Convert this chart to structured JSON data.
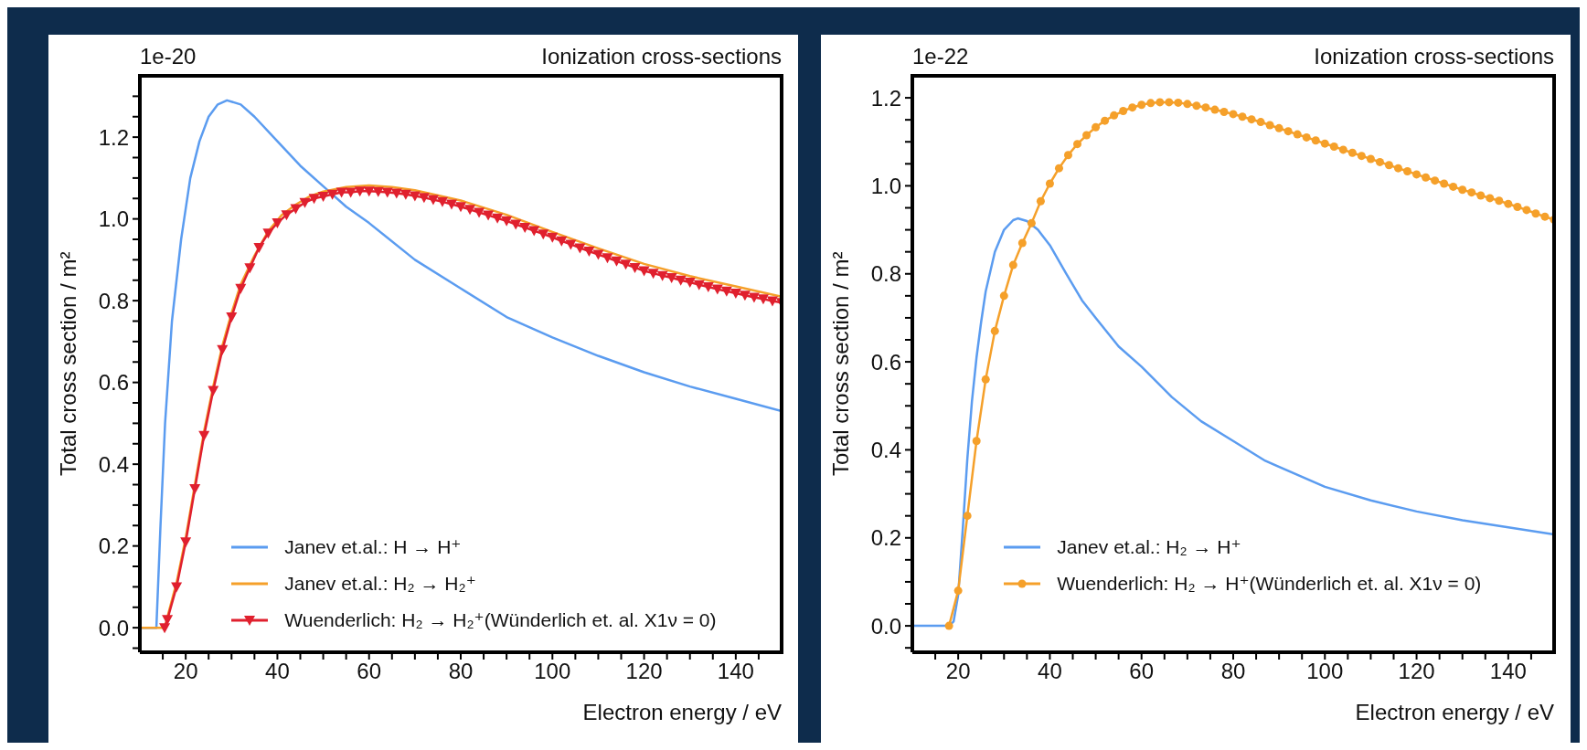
{
  "chart_data": [
    {
      "type": "line",
      "title": "Ionization cross-sections",
      "xlabel": "Electron energy / eV",
      "ylabel": "Total cross section / m²",
      "annotations": [
        "1e-20"
      ],
      "legend": "bottom",
      "xlim": [
        10,
        150
      ],
      "ylim": [
        -0.06,
        1.35
      ],
      "xticks": [
        {
          "value": 15,
          "label": null
        },
        20,
        {
          "value": 25,
          "label": null
        },
        {
          "value": 30,
          "label": null
        },
        {
          "value": 35,
          "label": null
        },
        40,
        {
          "value": 45,
          "label": null
        },
        {
          "value": 50,
          "label": null
        },
        {
          "value": 55,
          "label": null
        },
        60,
        {
          "value": 65,
          "label": null
        },
        {
          "value": 70,
          "label": null
        },
        {
          "value": 75,
          "label": null
        },
        80,
        {
          "value": 85,
          "label": null
        },
        {
          "value": 90,
          "label": null
        },
        {
          "value": 95,
          "label": null
        },
        100,
        {
          "value": 105,
          "label": null
        },
        {
          "value": 110,
          "label": null
        },
        {
          "value": 115,
          "label": null
        },
        120,
        {
          "value": 125,
          "label": null
        },
        {
          "value": 130,
          "label": null
        },
        {
          "value": 135,
          "label": null
        },
        140,
        {
          "value": 145,
          "label": null
        }
      ],
      "yticks": [
        {
          "value": -0.05,
          "label": null
        },
        {
          "value": 0,
          "label": "0.0"
        },
        {
          "value": 0.05,
          "label": null
        },
        {
          "value": 0.1,
          "label": null
        },
        {
          "value": 0.15,
          "label": null
        },
        0.2,
        {
          "value": 0.25,
          "label": null
        },
        {
          "value": 0.3,
          "label": null
        },
        {
          "value": 0.35,
          "label": null
        },
        0.4,
        {
          "value": 0.45,
          "label": null
        },
        {
          "value": 0.5,
          "label": null
        },
        {
          "value": 0.55,
          "label": null
        },
        0.6,
        {
          "value": 0.65,
          "label": null
        },
        {
          "value": 0.7,
          "label": null
        },
        {
          "value": 0.75,
          "label": null
        },
        0.8,
        {
          "value": 0.85,
          "label": null
        },
        {
          "value": 0.9,
          "label": null
        },
        {
          "value": 0.95,
          "label": null
        },
        {
          "value": 1,
          "label": "1.0"
        },
        {
          "value": 1.05,
          "label": null
        },
        {
          "value": 1.1,
          "label": null
        },
        {
          "value": 1.15,
          "label": null
        },
        1.2,
        {
          "value": 1.25,
          "label": null
        },
        {
          "value": 1.3,
          "label": null
        }
      ],
      "series": [
        {
          "name": "Janev et.al.: H → H⁺",
          "color": "#5b9cf0",
          "marker": "none",
          "x": [
            10,
            13.6,
            14.5,
            15.5,
            17,
            19,
            21,
            23,
            25,
            27,
            29,
            32,
            35,
            40,
            45,
            50,
            55,
            60,
            70,
            80,
            90,
            100,
            110,
            120,
            130,
            140,
            150
          ],
          "values": [
            0,
            0,
            0.25,
            0.5,
            0.75,
            0.95,
            1.1,
            1.19,
            1.25,
            1.28,
            1.29,
            1.28,
            1.25,
            1.19,
            1.13,
            1.08,
            1.03,
            0.99,
            0.9,
            0.83,
            0.76,
            0.71,
            0.665,
            0.625,
            0.59,
            0.56,
            0.53
          ]
        },
        {
          "name": "Janev et.al.: H₂ → H₂⁺",
          "color": "#f5a02a",
          "marker": "none",
          "x": [
            10,
            15.4,
            18,
            20,
            22,
            24,
            26,
            28,
            30,
            32,
            35,
            38,
            41,
            44,
            47,
            50,
            55,
            60,
            65,
            70,
            80,
            90,
            100,
            110,
            120,
            130,
            140,
            150
          ],
          "values": [
            0,
            0,
            0.11,
            0.22,
            0.35,
            0.48,
            0.59,
            0.69,
            0.77,
            0.84,
            0.91,
            0.97,
            1.01,
            1.035,
            1.055,
            1.067,
            1.078,
            1.082,
            1.078,
            1.07,
            1.045,
            1.01,
            0.968,
            0.928,
            0.89,
            0.86,
            0.835,
            0.81
          ]
        },
        {
          "name": "Wuenderlich: H₂ → H₂⁺(Wünderlich et. al. X1ν = 0)",
          "color": "#e0202e",
          "marker": "triangle",
          "x": [
            15.4,
            16,
            18,
            20,
            22,
            24,
            26,
            28,
            30,
            32,
            34,
            36,
            38,
            40,
            42,
            44,
            46,
            48,
            50,
            52,
            54,
            56,
            58,
            60,
            62,
            64,
            66,
            68,
            70,
            72,
            74,
            76,
            78,
            80,
            82,
            84,
            86,
            88,
            90,
            92,
            94,
            96,
            98,
            100,
            102,
            104,
            106,
            108,
            110,
            112,
            114,
            116,
            118,
            120,
            122,
            124,
            126,
            128,
            130,
            132,
            134,
            136,
            138,
            140,
            142,
            144,
            146,
            148,
            150
          ],
          "values": [
            0,
            0.02,
            0.1,
            0.21,
            0.34,
            0.47,
            0.58,
            0.68,
            0.76,
            0.83,
            0.88,
            0.93,
            0.965,
            0.99,
            1.01,
            1.025,
            1.04,
            1.05,
            1.055,
            1.06,
            1.065,
            1.065,
            1.068,
            1.068,
            1.067,
            1.065,
            1.063,
            1.06,
            1.056,
            1.052,
            1.047,
            1.042,
            1.036,
            1.03,
            1.023,
            1.016,
            1.009,
            1.002,
            0.995,
            0.987,
            0.979,
            0.971,
            0.963,
            0.955,
            0.946,
            0.938,
            0.929,
            0.921,
            0.913,
            0.905,
            0.897,
            0.889,
            0.881,
            0.873,
            0.867,
            0.861,
            0.856,
            0.85,
            0.845,
            0.839,
            0.834,
            0.828,
            0.823,
            0.818,
            0.813,
            0.808,
            0.804,
            0.799,
            0.795
          ]
        }
      ]
    },
    {
      "type": "line",
      "title": "Ionization cross-sections",
      "xlabel": "Electron energy / eV",
      "ylabel": "Total cross section / m²",
      "annotations": [
        "1e-22"
      ],
      "legend": "bottom",
      "xlim": [
        10,
        150
      ],
      "ylim": [
        -0.06,
        1.25
      ],
      "xticks": [
        {
          "value": 15,
          "label": null
        },
        20,
        {
          "value": 25,
          "label": null
        },
        {
          "value": 30,
          "label": null
        },
        {
          "value": 35,
          "label": null
        },
        40,
        {
          "value": 45,
          "label": null
        },
        {
          "value": 50,
          "label": null
        },
        {
          "value": 55,
          "label": null
        },
        60,
        {
          "value": 65,
          "label": null
        },
        {
          "value": 70,
          "label": null
        },
        {
          "value": 75,
          "label": null
        },
        80,
        {
          "value": 85,
          "label": null
        },
        {
          "value": 90,
          "label": null
        },
        {
          "value": 95,
          "label": null
        },
        100,
        {
          "value": 105,
          "label": null
        },
        {
          "value": 110,
          "label": null
        },
        {
          "value": 115,
          "label": null
        },
        120,
        {
          "value": 125,
          "label": null
        },
        {
          "value": 130,
          "label": null
        },
        {
          "value": 135,
          "label": null
        },
        140,
        {
          "value": 145,
          "label": null
        }
      ],
      "yticks": [
        {
          "value": -0.05,
          "label": null
        },
        {
          "value": 0,
          "label": "0.0"
        },
        {
          "value": 0.05,
          "label": null
        },
        {
          "value": 0.1,
          "label": null
        },
        {
          "value": 0.15,
          "label": null
        },
        0.2,
        {
          "value": 0.25,
          "label": null
        },
        {
          "value": 0.3,
          "label": null
        },
        {
          "value": 0.35,
          "label": null
        },
        0.4,
        {
          "value": 0.45,
          "label": null
        },
        {
          "value": 0.5,
          "label": null
        },
        {
          "value": 0.55,
          "label": null
        },
        0.6,
        {
          "value": 0.65,
          "label": null
        },
        {
          "value": 0.7,
          "label": null
        },
        {
          "value": 0.75,
          "label": null
        },
        0.8,
        {
          "value": 0.85,
          "label": null
        },
        {
          "value": 0.9,
          "label": null
        },
        {
          "value": 0.95,
          "label": null
        },
        {
          "value": 1,
          "label": "1.0"
        },
        {
          "value": 1.05,
          "label": null
        },
        {
          "value": 1.1,
          "label": null
        },
        {
          "value": 1.15,
          "label": null
        },
        1.2
      ],
      "series": [
        {
          "name": "Janev et.al.: H₂ → H⁺",
          "color": "#5b9cf0",
          "marker": "none",
          "x": [
            10,
            18,
            19,
            20,
            21,
            22,
            23,
            24,
            25,
            26,
            28,
            30,
            32,
            33,
            35,
            37.4,
            40,
            43.6,
            47,
            50,
            55,
            60,
            66.6,
            73,
            80,
            87,
            100,
            110,
            120,
            130,
            140,
            150
          ],
          "values": [
            0,
            0,
            0.01,
            0.07,
            0.22,
            0.38,
            0.51,
            0.61,
            0.69,
            0.76,
            0.85,
            0.9,
            0.922,
            0.926,
            0.92,
            0.9,
            0.865,
            0.8,
            0.74,
            0.7,
            0.635,
            0.589,
            0.52,
            0.465,
            0.42,
            0.375,
            0.316,
            0.285,
            0.26,
            0.24,
            0.224,
            0.208
          ]
        },
        {
          "name": "Wuenderlich: H₂ → H⁺(Wünderlich et. al. X1ν = 0)",
          "color": "#f5a02a",
          "marker": "circle",
          "x": [
            18,
            20,
            22,
            24,
            26,
            28,
            30,
            32,
            34,
            36,
            38,
            40,
            42,
            44,
            46,
            48,
            50,
            52,
            54,
            56,
            58,
            60,
            62,
            64,
            66,
            68,
            70,
            72,
            74,
            76,
            78,
            80,
            82,
            84,
            86,
            88,
            90,
            92,
            94,
            96,
            98,
            100,
            102,
            104,
            106,
            108,
            110,
            112,
            114,
            116,
            118,
            120,
            122,
            124,
            126,
            128,
            130,
            132,
            134,
            136,
            138,
            140,
            142,
            144,
            146,
            148,
            150
          ],
          "values": [
            0,
            0.08,
            0.25,
            0.42,
            0.56,
            0.67,
            0.75,
            0.82,
            0.87,
            0.915,
            0.965,
            1.005,
            1.04,
            1.07,
            1.095,
            1.115,
            1.133,
            1.148,
            1.16,
            1.17,
            1.178,
            1.184,
            1.188,
            1.19,
            1.19,
            1.189,
            1.186,
            1.182,
            1.178,
            1.173,
            1.168,
            1.163,
            1.157,
            1.151,
            1.145,
            1.138,
            1.131,
            1.124,
            1.117,
            1.11,
            1.103,
            1.096,
            1.089,
            1.082,
            1.075,
            1.068,
            1.061,
            1.054,
            1.047,
            1.04,
            1.033,
            1.026,
            1.019,
            1.012,
            1.005,
            0.998,
            0.991,
            0.985,
            0.978,
            0.972,
            0.966,
            0.959,
            0.952,
            0.945,
            0.937,
            0.93,
            0.923
          ]
        }
      ]
    }
  ]
}
